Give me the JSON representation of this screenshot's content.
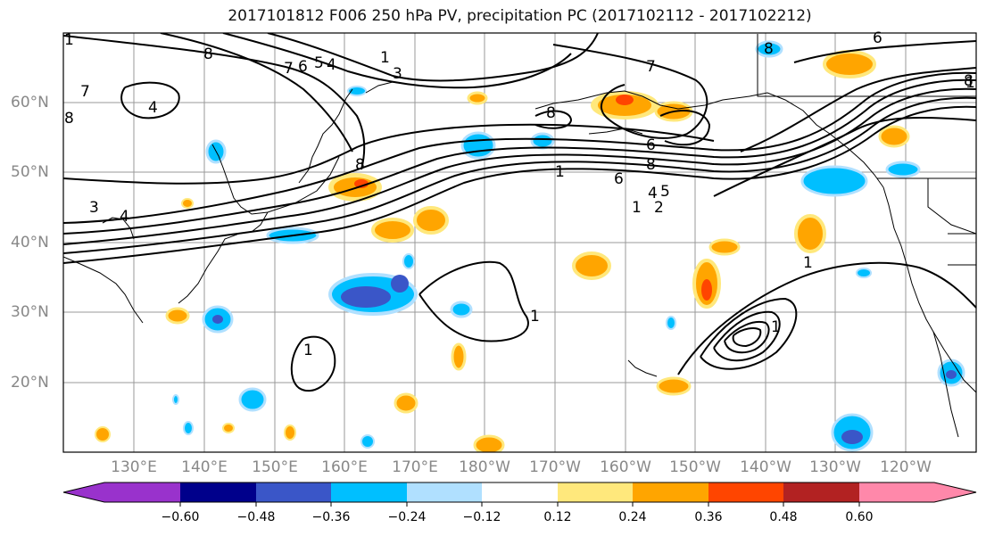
{
  "title": "2017101812 F006 250 hPa PV, precipitation PC (2017102112 - 2017102212)",
  "latitude_labels": [
    "60°N",
    "50°N",
    "40°N",
    "30°N",
    "20°N"
  ],
  "longitude_labels": [
    "130°E",
    "140°E",
    "150°E",
    "160°E",
    "170°E",
    "180°W",
    "170°W",
    "160°W",
    "150°W",
    "140°W",
    "130°W",
    "120°W"
  ],
  "contour_labels": [
    "1",
    "3",
    "4",
    "5",
    "6",
    "7",
    "8",
    "2"
  ],
  "colorbar": {
    "ticks": [
      "−0.60",
      "−0.48",
      "−0.36",
      "−0.24",
      "−0.12",
      "0.12",
      "0.24",
      "0.36",
      "0.48",
      "0.60"
    ],
    "colors": [
      "#9932CC",
      "#00008B",
      "#3A56C8",
      "#00BFFF",
      "#B0E0FF",
      "#FFFFFF",
      "#FFE87C",
      "#FFA500",
      "#FF4500",
      "#B22222",
      "#FF88AA"
    ]
  },
  "colors": {
    "positive": "#FFA500",
    "positive_light": "#FFE87C",
    "positive_strong": "#FF4500",
    "negative": "#00BFFF",
    "negative_light": "#B0E0FF",
    "negative_strong": "#3A56C8"
  }
}
